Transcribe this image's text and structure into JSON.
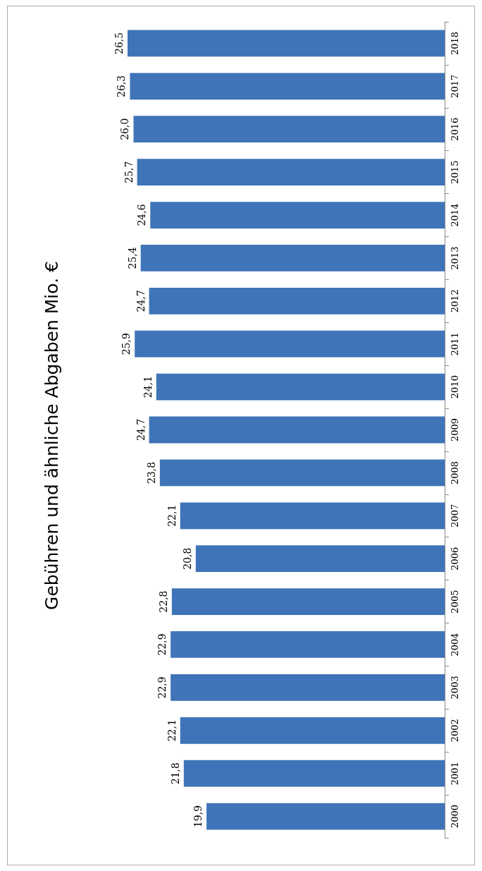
{
  "chart_data": {
    "type": "bar",
    "title": "Gebühren und ähnliche Abgaben Mio. €",
    "orientation": "horizontal",
    "categories": [
      "2018",
      "2017",
      "2016",
      "2015",
      "2014",
      "2013",
      "2012",
      "2011",
      "2010",
      "2009",
      "2008",
      "2007",
      "2006",
      "2005",
      "2004",
      "2003",
      "2002",
      "2001",
      "2000"
    ],
    "values": [
      26.5,
      26.3,
      26.0,
      25.7,
      24.6,
      25.4,
      24.7,
      25.9,
      24.1,
      24.7,
      23.8,
      22.1,
      20.8,
      22.8,
      22.9,
      22.9,
      22.1,
      21.8,
      19.9
    ],
    "value_labels": [
      "26,5",
      "26,3",
      "26,0",
      "25,7",
      "24,6",
      "25,4",
      "24,7",
      "25,9",
      "24,1",
      "24,7",
      "23,8",
      "22,1",
      "20,8",
      "22,8",
      "22,9",
      "22,9",
      "22,1",
      "21,8",
      "19,9"
    ],
    "color": "#3f74b8"
  }
}
